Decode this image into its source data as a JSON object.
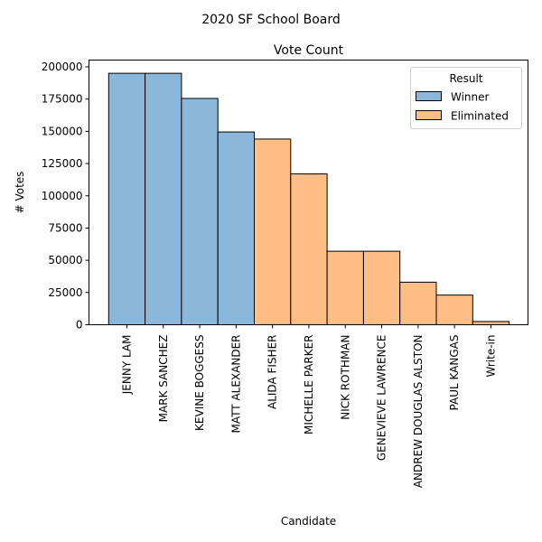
{
  "chart_data": {
    "type": "bar",
    "suptitle": "2020 SF School Board",
    "title": "Vote Count",
    "xlabel": "Candidate",
    "ylabel": "# Votes",
    "ylim": [
      0,
      200000
    ],
    "yticks": [
      0,
      25000,
      50000,
      75000,
      100000,
      125000,
      150000,
      175000,
      200000
    ],
    "categories": [
      "JENNY LAM",
      "MARK SANCHEZ",
      "KEVINE BOGGESS",
      "MATT ALEXANDER",
      "ALIDA FISHER",
      "MICHELLE PARKER",
      "NICK ROTHMAN",
      "GENEVIEVE LAWRENCE",
      "ANDREW DOUGLAS ALSTON",
      "PAUL KANGAS",
      "Write-in"
    ],
    "values": [
      195000,
      195000,
      175500,
      149500,
      144000,
      117000,
      57000,
      57000,
      33000,
      23000,
      2500
    ],
    "result": [
      "Winner",
      "Winner",
      "Winner",
      "Winner",
      "Eliminated",
      "Eliminated",
      "Eliminated",
      "Eliminated",
      "Eliminated",
      "Eliminated",
      "Eliminated"
    ],
    "legend": {
      "title": "Result",
      "placement": "top-right",
      "entries": [
        {
          "label": "Winner",
          "color": "#8bb8da"
        },
        {
          "label": "Eliminated",
          "color": "#ffbe86"
        }
      ]
    },
    "grid": false
  }
}
